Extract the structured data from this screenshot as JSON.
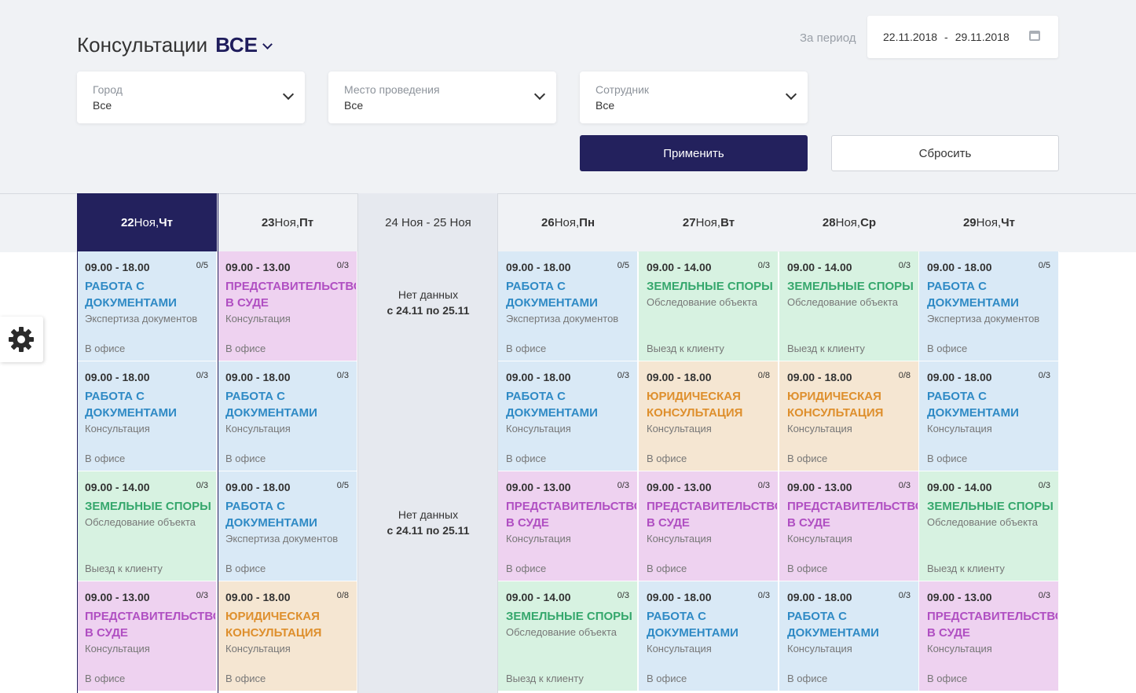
{
  "header": {
    "title": "Консультации",
    "filter_all": "ВСЕ",
    "period_label": "За период",
    "date_from": "22.11.2018",
    "date_sep": "-",
    "date_to": "29.11.2018"
  },
  "filters": [
    {
      "label": "Город",
      "value": "Все"
    },
    {
      "label": "Место проведения",
      "value": "Все"
    },
    {
      "label": "Сотрудник",
      "value": "Все"
    }
  ],
  "buttons": {
    "apply": "Применить",
    "reset": "Сбросить"
  },
  "days": [
    {
      "num": "22",
      "month": "Ноя,",
      "dow": "Чт",
      "active": true
    },
    {
      "num": "23",
      "month": "Ноя,",
      "dow": "Пт"
    },
    {
      "weekend_label": "24 Ноя - 25 Ноя",
      "weekend": true
    },
    {
      "num": "26",
      "month": "Ноя,",
      "dow": "Пн"
    },
    {
      "num": "27",
      "month": "Ноя,",
      "dow": "Вт"
    },
    {
      "num": "28",
      "month": "Ноя,",
      "dow": "Ср"
    },
    {
      "num": "29",
      "month": "Ноя,",
      "dow": "Чт"
    }
  ],
  "weekend": {
    "no_data": "Нет данных",
    "range": "с 24.11 по 25.11"
  },
  "colors": {
    "accent": "#23215d",
    "blue": "#d9e9f6",
    "green": "#d7f2e1",
    "pink": "#eed2f0",
    "orange": "#f5e6d2"
  },
  "columns": [
    [
      {
        "time": "09.00 - 18.00",
        "cap": "0/5",
        "name": "РАБОТА С\nДОКУМЕНТАМИ",
        "sub": "Экспертиза документов",
        "loc": "В офисе",
        "color": "blue"
      },
      {
        "time": "09.00 - 18.00",
        "cap": "0/3",
        "name": "РАБОТА С\nДОКУМЕНТАМИ",
        "sub": "Консультация",
        "loc": "В офисе",
        "color": "blue"
      },
      {
        "time": "09.00 - 14.00",
        "cap": "0/3",
        "name": "ЗЕМЕЛЬНЫЕ СПОРЫ",
        "sub": "Обследование объекта",
        "loc": "Выезд к клиенту",
        "color": "green"
      },
      {
        "time": "09.00 - 13.00",
        "cap": "0/3",
        "name": "ПРЕДСТАВИТЕЛЬСТВО\nВ СУДЕ",
        "sub": "Консультация",
        "loc": "В офисе",
        "color": "pink"
      }
    ],
    [
      {
        "time": "09.00 - 13.00",
        "cap": "0/3",
        "name": "ПРЕДСТАВИТЕЛЬСТВО\nВ СУДЕ",
        "sub": "Консультация",
        "loc": "В офисе",
        "color": "pink"
      },
      {
        "time": "09.00 - 18.00",
        "cap": "0/3",
        "name": "РАБОТА С\nДОКУМЕНТАМИ",
        "sub": "Консультация",
        "loc": "В офисе",
        "color": "blue"
      },
      {
        "time": "09.00 - 18.00",
        "cap": "0/5",
        "name": "РАБОТА С\nДОКУМЕНТАМИ",
        "sub": "Экспертиза документов",
        "loc": "В офисе",
        "color": "blue"
      },
      {
        "time": "09.00 - 18.00",
        "cap": "0/8",
        "name": "ЮРИДИЧЕСКАЯ\nКОНСУЛЬТАЦИЯ",
        "sub": "Консультация",
        "loc": "В офисе",
        "color": "orange"
      }
    ],
    [],
    [
      {
        "time": "09.00 - 18.00",
        "cap": "0/5",
        "name": "РАБОТА С\nДОКУМЕНТАМИ",
        "sub": "Экспертиза документов",
        "loc": "В офисе",
        "color": "blue"
      },
      {
        "time": "09.00 - 18.00",
        "cap": "0/3",
        "name": "РАБОТА С\nДОКУМЕНТАМИ",
        "sub": "Консультация",
        "loc": "В офисе",
        "color": "blue"
      },
      {
        "time": "09.00 - 13.00",
        "cap": "0/3",
        "name": "ПРЕДСТАВИТЕЛЬСТВО\nВ СУДЕ",
        "sub": "Консультация",
        "loc": "В офисе",
        "color": "pink"
      },
      {
        "time": "09.00 - 14.00",
        "cap": "0/3",
        "name": "ЗЕМЕЛЬНЫЕ СПОРЫ",
        "sub": "Обследование объекта",
        "loc": "Выезд к клиенту",
        "color": "green"
      }
    ],
    [
      {
        "time": "09.00 - 14.00",
        "cap": "0/3",
        "name": "ЗЕМЕЛЬНЫЕ СПОРЫ",
        "sub": "Обследование объекта",
        "loc": "Выезд к клиенту",
        "color": "green"
      },
      {
        "time": "09.00 - 18.00",
        "cap": "0/8",
        "name": "ЮРИДИЧЕСКАЯ\nКОНСУЛЬТАЦИЯ",
        "sub": "Консультация",
        "loc": "В офисе",
        "color": "orange"
      },
      {
        "time": "09.00 - 13.00",
        "cap": "0/3",
        "name": "ПРЕДСТАВИТЕЛЬСТВО\nВ СУДЕ",
        "sub": "Консультация",
        "loc": "В офисе",
        "color": "pink"
      },
      {
        "time": "09.00 - 18.00",
        "cap": "0/3",
        "name": "РАБОТА С\nДОКУМЕНТАМИ",
        "sub": "Консультация",
        "loc": "В офисе",
        "color": "blue"
      }
    ],
    [
      {
        "time": "09.00 - 14.00",
        "cap": "0/3",
        "name": "ЗЕМЕЛЬНЫЕ СПОРЫ",
        "sub": "Обследование объекта",
        "loc": "Выезд к клиенту",
        "color": "green"
      },
      {
        "time": "09.00 - 18.00",
        "cap": "0/8",
        "name": "ЮРИДИЧЕСКАЯ\nКОНСУЛЬТАЦИЯ",
        "sub": "Консультация",
        "loc": "В офисе",
        "color": "orange"
      },
      {
        "time": "09.00 - 13.00",
        "cap": "0/3",
        "name": "ПРЕДСТАВИТЕЛЬСТВО\nВ СУДЕ",
        "sub": "Консультация",
        "loc": "В офисе",
        "color": "pink"
      },
      {
        "time": "09.00 - 18.00",
        "cap": "0/3",
        "name": "РАБОТА С\nДОКУМЕНТАМИ",
        "sub": "Консультация",
        "loc": "В офисе",
        "color": "blue"
      }
    ],
    [
      {
        "time": "09.00 - 18.00",
        "cap": "0/5",
        "name": "РАБОТА С\nДОКУМЕНТАМИ",
        "sub": "Экспертиза документов",
        "loc": "В офисе",
        "color": "blue"
      },
      {
        "time": "09.00 - 18.00",
        "cap": "0/3",
        "name": "РАБОТА С\nДОКУМЕНТАМИ",
        "sub": "Консультация",
        "loc": "В офисе",
        "color": "blue"
      },
      {
        "time": "09.00 - 14.00",
        "cap": "0/3",
        "name": "ЗЕМЕЛЬНЫЕ СПОРЫ",
        "sub": "Обследование объекта",
        "loc": "Выезд к клиенту",
        "color": "green"
      },
      {
        "time": "09.00 - 13.00",
        "cap": "0/3",
        "name": "ПРЕДСТАВИТЕЛЬСТВО\nВ СУДЕ",
        "sub": "Консультация",
        "loc": "В офисе",
        "color": "pink"
      }
    ]
  ]
}
